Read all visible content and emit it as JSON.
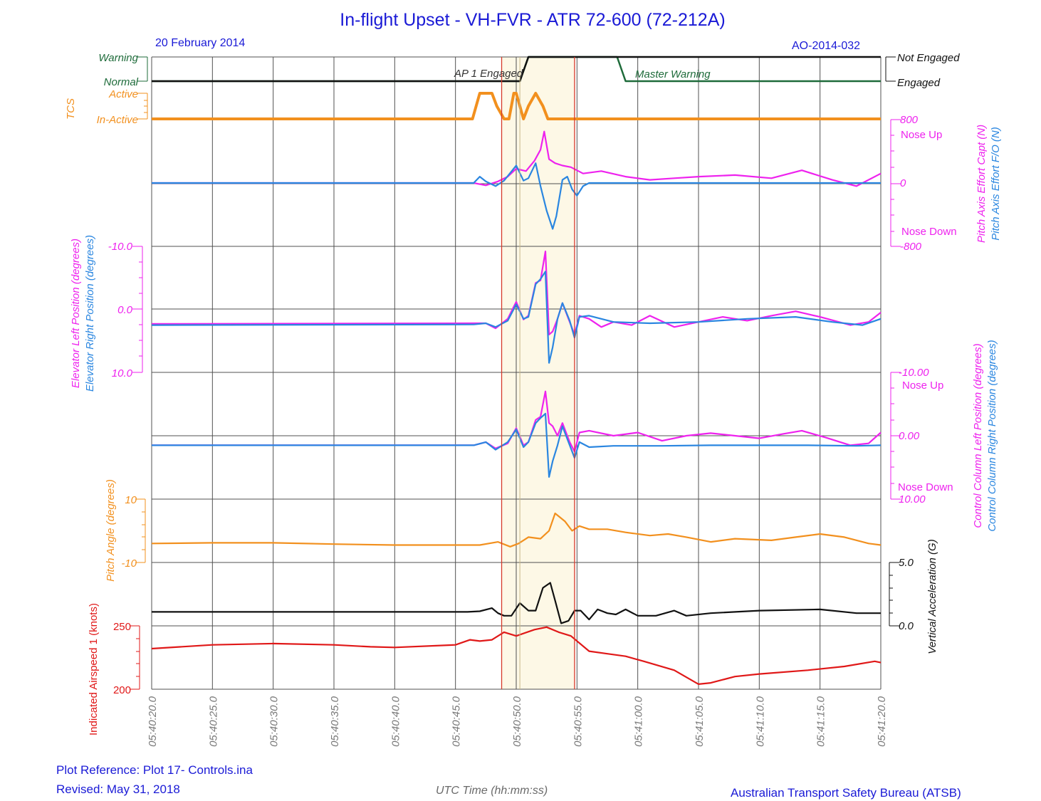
{
  "header": {
    "title": "In-flight Upset - VH-FVR -  ATR 72-600 (72-212A)",
    "date": "20 February 2014",
    "report_id": "AO-2014-032"
  },
  "footer": {
    "plot_reference": "Plot Reference: Plot 17- Controls.ina",
    "revised": "Revised: May 31, 2018",
    "x_axis_label": "UTC Time (hh:mm:ss)",
    "agency": "Australian Transport Safety Bureau (ATSB)"
  },
  "colors": {
    "magenta": "#ee22ee",
    "blue": "#2a86e0",
    "orange": "#f2901e",
    "red": "#e01818",
    "black": "#111111",
    "green": "#1e6b3a",
    "highlight": "#fdf8e6",
    "marker": "#d63a2a",
    "grid": "#505050"
  },
  "chart_data": {
    "type": "line",
    "x_axis": {
      "label": "UTC Time (hh:mm:ss)",
      "ticks": [
        "05:40:20.0",
        "05:40:25.0",
        "05:40:30.0",
        "05:40:35.0",
        "05:40:40.0",
        "05:40:45.0",
        "05:40:50.0",
        "05:40:55.0",
        "05:41:00.0",
        "05:41:05.0",
        "05:41:10.0",
        "05:41:15.0",
        "05:41:20.0"
      ]
    },
    "highlight_region": {
      "from": "05:40:48.8",
      "to": "05:40:54.8"
    },
    "marker_lines": [
      "05:40:48.8",
      "05:40:50.3",
      "05:40:54.8"
    ],
    "panels": [
      {
        "id": "master-warning",
        "left_ticks": [
          "Warning",
          "Normal"
        ],
        "right_ticks": [
          "Not  Engaged",
          "Engaged"
        ],
        "annotations": [
          "AP 1 Engaged",
          "Master Warning"
        ],
        "series": [
          {
            "name": "Master Warning",
            "color": "green",
            "x": [
              20,
              50.3,
              51.0,
              58.3,
              59.0,
              80
            ],
            "y": [
              0,
              0,
              1,
              1,
              0,
              0
            ]
          },
          {
            "name": "AP 1 Engaged",
            "color": "black",
            "x": [
              20,
              50.3,
              51.0,
              80
            ],
            "y": [
              0,
              0,
              1,
              1
            ]
          }
        ]
      },
      {
        "id": "tcs",
        "label": "TCS",
        "left_ticks": [
          "Active",
          "In-Active"
        ],
        "series": [
          {
            "name": "TCS",
            "color": "orange",
            "x": [
              20,
              46.4,
              47.0,
              48.0,
              48.4,
              49.0,
              49.4,
              49.8,
              50.0,
              50.6,
              51.0,
              51.6,
              52.2,
              52.6,
              80
            ],
            "y": [
              0,
              0,
              1,
              1,
              0.5,
              0,
              0,
              1,
              1,
              0,
              0.5,
              1,
              0.5,
              0,
              0
            ]
          }
        ]
      },
      {
        "id": "pitch-effort",
        "right_label": [
          "Pitch Axis Effort Capt (N)",
          "Pitch Axis Effort F/O (N)"
        ],
        "right_ticks": [
          "800",
          "0",
          "-800"
        ],
        "right_notes": [
          "Nose Up",
          "Nose Down"
        ],
        "ylim": [
          -800,
          800
        ],
        "series": [
          {
            "name": "Pitch Axis Effort Capt (N)",
            "color": "magenta",
            "x": [
              20,
              46.5,
              47.5,
              48.5,
              49.3,
              50.0,
              50.8,
              51.5,
              52.0,
              52.3,
              52.7,
              53.2,
              53.8,
              54.5,
              55.5,
              57.0,
              59.0,
              61.0,
              63.0,
              65.0,
              68.0,
              71.0,
              73.5,
              76.0,
              78.0,
              80
            ],
            "y": [
              0,
              0,
              -30,
              20,
              80,
              180,
              150,
              280,
              420,
              650,
              300,
              250,
              220,
              200,
              120,
              150,
              80,
              40,
              60,
              80,
              100,
              60,
              160,
              40,
              -40,
              120
            ]
          },
          {
            "name": "Pitch Axis Effort F/O (N)",
            "color": "blue",
            "x": [
              20,
              46.5,
              47.0,
              47.5,
              48.3,
              49.0,
              50.0,
              50.6,
              51.0,
              51.6,
              52.0,
              52.5,
              53.0,
              53.3,
              53.8,
              54.2,
              54.6,
              55.0,
              55.5,
              56.0,
              80
            ],
            "y": [
              0,
              0,
              80,
              20,
              -40,
              30,
              220,
              30,
              60,
              250,
              -40,
              -350,
              -580,
              -420,
              40,
              80,
              -80,
              -160,
              -40,
              0,
              0
            ]
          }
        ]
      },
      {
        "id": "elevator",
        "left_label": [
          "Elevator Left Position (degrees)",
          "Elevator Right Position (degrees)"
        ],
        "left_ticks": [
          "-10.0",
          "0.0",
          "10.0"
        ],
        "ylim": [
          -10,
          10
        ],
        "series": [
          {
            "name": "Elevator Left Position (degrees)",
            "color": "magenta",
            "x": [
              20,
              46.5,
              47.5,
              48.3,
              49.3,
              50.0,
              50.6,
              51.0,
              51.6,
              52.0,
              52.4,
              52.7,
              53.0,
              53.4,
              53.8,
              54.4,
              54.8,
              55.2,
              56.0,
              57.0,
              58.0,
              59.5,
              61.0,
              63.0,
              65.0,
              67.0,
              69.0,
              71.0,
              73.0,
              75.0,
              77.5,
              79.0,
              80
            ],
            "y": [
              2.3,
              2.2,
              2.2,
              3.0,
              1.5,
              -1.2,
              1.6,
              1.0,
              -4.2,
              -4.6,
              -9.2,
              4.0,
              3.5,
              1.5,
              -1.0,
              2.0,
              4.0,
              1.0,
              1.5,
              2.8,
              2.0,
              2.5,
              1.0,
              2.8,
              2.0,
              1.2,
              1.8,
              1.0,
              0.3,
              1.2,
              2.5,
              2.0,
              0.5
            ]
          },
          {
            "name": "Elevator Right Position (degrees)",
            "color": "blue",
            "x": [
              20,
              46.5,
              47.5,
              48.3,
              49.3,
              50.0,
              50.6,
              51.0,
              51.6,
              52.0,
              52.4,
              52.7,
              53.0,
              53.4,
              53.8,
              54.4,
              54.8,
              55.2,
              56.0,
              58.0,
              61.0,
              65.0,
              69.0,
              73.0,
              76.0,
              78.5,
              80
            ],
            "y": [
              2.5,
              2.4,
              2.2,
              2.8,
              1.8,
              -0.8,
              1.5,
              1.2,
              -4.0,
              -4.8,
              -6.0,
              8.5,
              6.0,
              1.5,
              -1.0,
              1.8,
              4.5,
              1.2,
              1.0,
              2.0,
              2.2,
              2.0,
              1.5,
              1.2,
              2.0,
              2.5,
              1.5
            ]
          }
        ]
      },
      {
        "id": "control-column",
        "right_label": [
          "Control Column Left Position (degrees)",
          "Control Column Right Position (degrees)"
        ],
        "right_ticks": [
          "-10.00",
          "0.00",
          "10.00"
        ],
        "right_notes": [
          "Nose Up",
          "Nose Down"
        ],
        "ylim": [
          -10,
          10
        ],
        "series": [
          {
            "name": "Control Column Left Position (degrees)",
            "color": "magenta",
            "x": [
              20,
              46.5,
              47.5,
              48.3,
              49.3,
              50.0,
              50.6,
              51.0,
              51.6,
              52.0,
              52.4,
              52.7,
              53.0,
              53.4,
              53.8,
              54.4,
              54.8,
              55.2,
              56.0,
              58.0,
              60.0,
              62.0,
              64.0,
              66.0,
              68.0,
              70.0,
              72.0,
              73.5,
              75.5,
              77.5,
              79.0,
              80
            ],
            "y": [
              1.5,
              1.5,
              1.0,
              2.0,
              1.2,
              -1.2,
              1.5,
              1.0,
              -2.5,
              -3.0,
              -7.0,
              -2.0,
              -1.5,
              0,
              -2.0,
              1.0,
              2.5,
              -0.5,
              -0.8,
              0,
              -0.5,
              0.8,
              0,
              -0.4,
              0,
              0.4,
              -0.3,
              -0.8,
              0.3,
              1.5,
              1.2,
              -0.5
            ]
          },
          {
            "name": "Control Column Right Position (degrees)",
            "color": "blue",
            "x": [
              20,
              46.5,
              47.5,
              48.3,
              49.3,
              50.0,
              50.6,
              51.0,
              51.6,
              52.0,
              52.4,
              52.7,
              53.0,
              53.4,
              53.8,
              54.4,
              54.8,
              55.2,
              56.0,
              58.0,
              62.0,
              66.0,
              70.0,
              74.0,
              78.0,
              80
            ],
            "y": [
              1.5,
              1.5,
              1.0,
              2.2,
              1.0,
              -1.0,
              1.8,
              1.0,
              -2.0,
              -2.8,
              -3.5,
              6.5,
              4.0,
              1.5,
              -1.5,
              1.5,
              3.5,
              1.0,
              1.8,
              1.6,
              1.6,
              1.5,
              1.5,
              1.5,
              1.6,
              1.5
            ]
          }
        ]
      },
      {
        "id": "pitch-angle",
        "left_label": "Pitch Angle (degrees)",
        "left_ticks": [
          "10",
          "-10"
        ],
        "ylim": [
          -10,
          10
        ],
        "series": [
          {
            "name": "Pitch Angle (degrees)",
            "color": "orange",
            "x": [
              20,
              25,
              30,
              35,
              40,
              47,
              48.5,
              49.5,
              50.2,
              51.0,
              52.0,
              52.7,
              53.2,
              54.0,
              54.6,
              55.2,
              56.0,
              57.5,
              59.0,
              61.0,
              62.5,
              64.0,
              66.0,
              68.0,
              71.0,
              73.0,
              75.0,
              77.0,
              79.0,
              80
            ],
            "y": [
              -4.0,
              -3.8,
              -3.8,
              -4.2,
              -4.5,
              -4.5,
              -3.5,
              -5.0,
              -4.0,
              -2.0,
              -2.5,
              0,
              5.5,
              3.0,
              0,
              1.5,
              0.5,
              0.5,
              -0.5,
              -1.5,
              -1.0,
              -2.0,
              -3.5,
              -2.5,
              -3.0,
              -2.0,
              -1.0,
              -2.0,
              -4.0,
              -4.5
            ]
          }
        ]
      },
      {
        "id": "vertical-acceleration",
        "right_label": "Vertical Acceleration (G)",
        "right_ticks": [
          "5.0",
          "0.0"
        ],
        "ylim": [
          0,
          5
        ],
        "series": [
          {
            "name": "Vertical Acceleration (G)",
            "color": "black",
            "x": [
              20,
              30,
              40,
              46,
              47,
              48.0,
              48.5,
              49.0,
              49.6,
              50.3,
              51.0,
              51.6,
              52.2,
              52.8,
              53.2,
              53.7,
              54.3,
              54.8,
              55.3,
              56.0,
              56.7,
              57.5,
              58.2,
              59.0,
              60.0,
              61.5,
              63.0,
              64.0,
              66.0,
              70.0,
              75.0,
              78.0,
              80
            ],
            "y": [
              1.1,
              1.1,
              1.1,
              1.1,
              1.15,
              1.4,
              1.0,
              0.8,
              0.8,
              1.8,
              1.2,
              1.2,
              3.0,
              3.4,
              2.0,
              0.2,
              0.4,
              1.2,
              1.2,
              0.5,
              1.3,
              1.0,
              0.9,
              1.3,
              0.8,
              0.8,
              1.2,
              0.8,
              1.0,
              1.2,
              1.3,
              1.0,
              1.0
            ]
          }
        ]
      },
      {
        "id": "airspeed",
        "left_label": "Indicated Airspeed 1 (knots)",
        "left_ticks": [
          "250",
          "200"
        ],
        "ylim": [
          200,
          250
        ],
        "series": [
          {
            "name": "Indicated Airspeed 1 (knots)",
            "color": "red",
            "x": [
              20,
              25,
              30,
              35,
              38,
              40,
              45,
              46.2,
              47.0,
              48.0,
              49.0,
              50.0,
              51.5,
              52.5,
              53.5,
              54.5,
              56.0,
              57.5,
              59.0,
              60.5,
              63.0,
              65.0,
              66.0,
              68.0,
              70.0,
              74.0,
              77.0,
              79.5,
              80
            ],
            "y": [
              232,
              235,
              236,
              235,
              233.5,
              233,
              235,
              239,
              238,
              239,
              245,
              242,
              247,
              249,
              245,
              242,
              230,
              228,
              226,
              222,
              215,
              204,
              205,
              210,
              212,
              215,
              218,
              222,
              221
            ]
          }
        ]
      }
    ]
  }
}
